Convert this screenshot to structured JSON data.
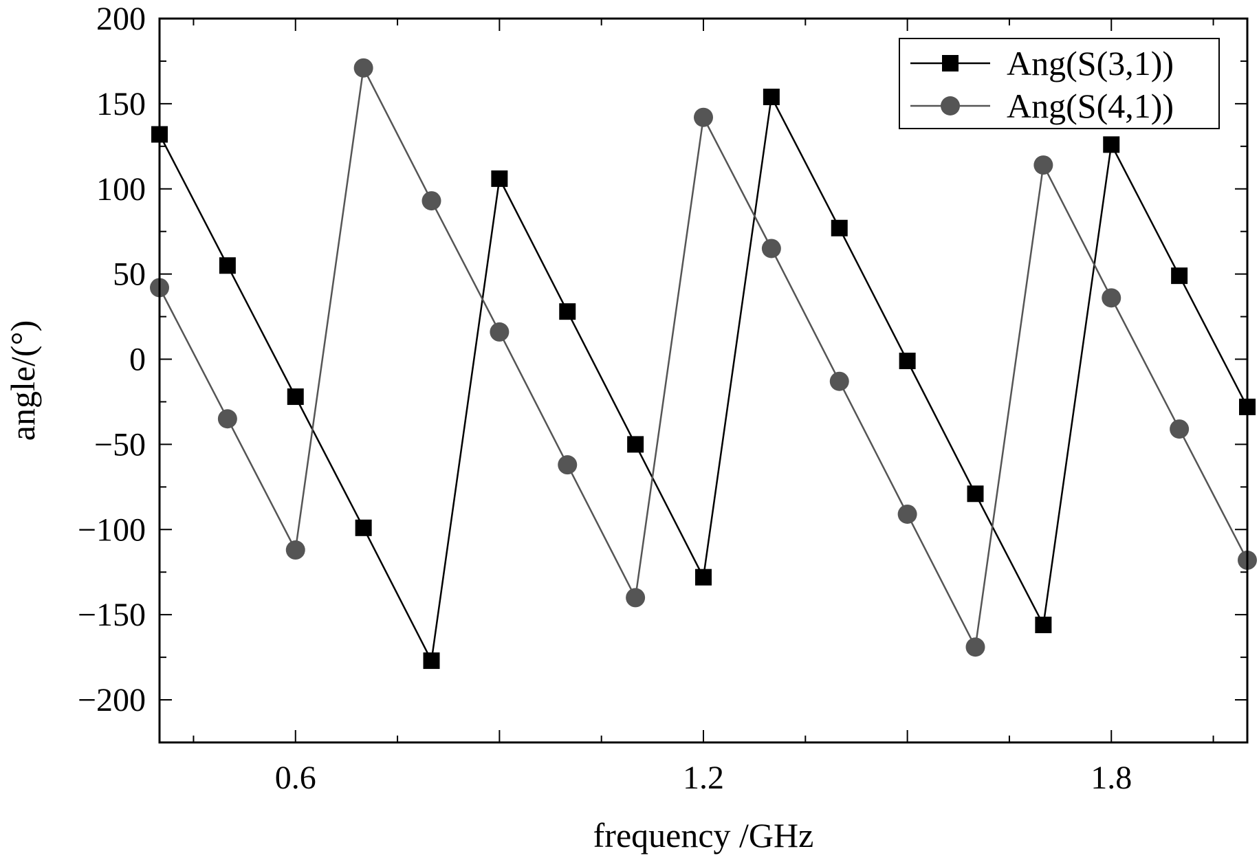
{
  "chart_data": {
    "type": "line",
    "xlabel": "frequency /GHz",
    "ylabel": "angle/(°)",
    "xlim": [
      0.4,
      2.0
    ],
    "ylim": [
      -225,
      200
    ],
    "x_ticks": [
      0.6,
      1.2,
      1.8
    ],
    "x_tick_labels": [
      "0.6",
      "1.2",
      "1.8"
    ],
    "y_ticks": [
      -200,
      -150,
      -100,
      -50,
      0,
      50,
      100,
      150,
      200
    ],
    "y_tick_labels": [
      "−200",
      "−150",
      "−100",
      "−50",
      "0",
      "50",
      "100",
      "150",
      "200"
    ],
    "legend_position": "top-right",
    "grid": false,
    "series": [
      {
        "name": "Ang(S(3,1))",
        "color": "#000000",
        "marker": "square",
        "x": [
          0.4,
          0.5,
          0.6,
          0.7,
          0.8,
          0.9,
          1.0,
          1.1,
          1.2,
          1.3,
          1.4,
          1.5,
          1.6,
          1.7,
          1.8,
          1.9,
          2.0
        ],
        "y": [
          132,
          55,
          -22,
          -99,
          -177,
          106,
          28,
          -50,
          -128,
          154,
          77,
          -1,
          -79,
          -156,
          126,
          49,
          -28
        ]
      },
      {
        "name": "Ang(S(4,1))",
        "color": "#555555",
        "marker": "circle",
        "x": [
          0.4,
          0.5,
          0.6,
          0.7,
          0.8,
          0.9,
          1.0,
          1.1,
          1.2,
          1.3,
          1.4,
          1.5,
          1.6,
          1.7,
          1.8,
          1.9,
          2.0
        ],
        "y": [
          42,
          -35,
          -112,
          171,
          93,
          16,
          -62,
          -140,
          142,
          65,
          -13,
          -91,
          -169,
          114,
          36,
          -41,
          -118
        ]
      }
    ]
  }
}
